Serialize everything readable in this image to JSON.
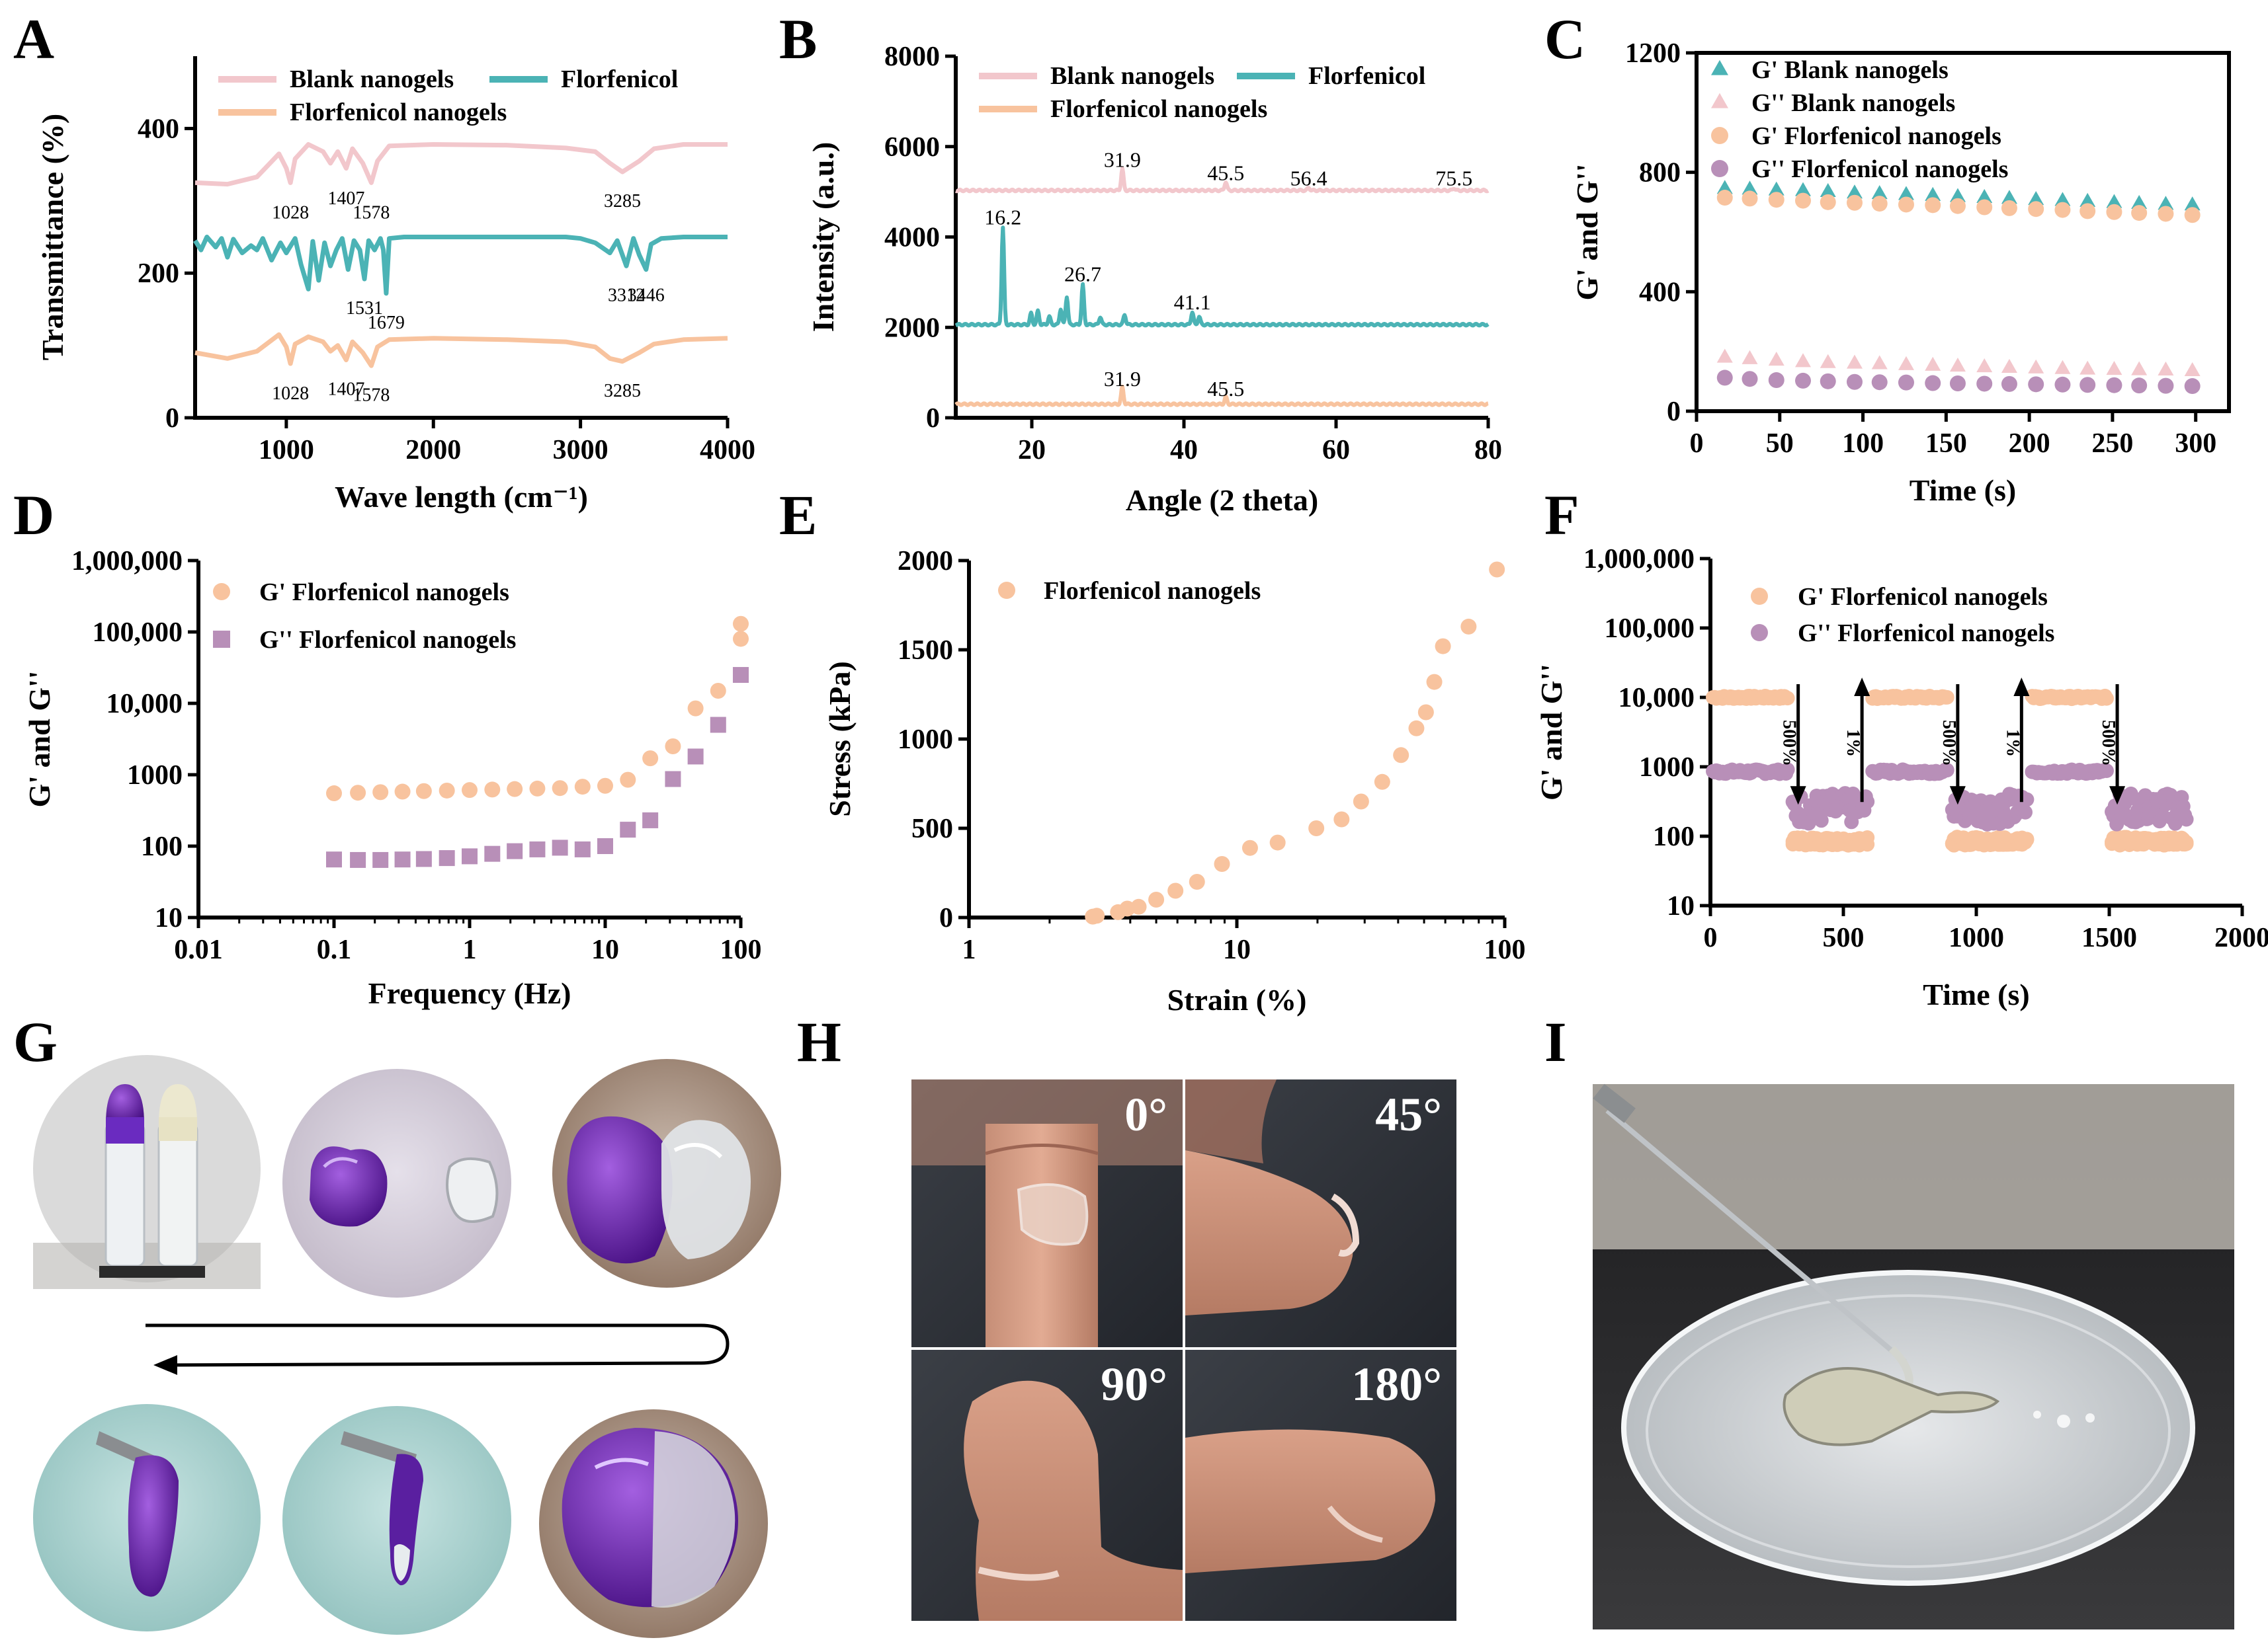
{
  "panel_letters": [
    "A",
    "B",
    "C",
    "D",
    "E",
    "F",
    "G",
    "H",
    "I"
  ],
  "colors": {
    "blank": "#F2C7CC",
    "flor": "#4BB3B5",
    "flornano": "#F8C39E",
    "gdouble": "#B88FB8",
    "gdouble_dark": "#A47AAA"
  },
  "chart_data": [
    {
      "id": "A",
      "type": "line",
      "xlabel": "Wave length (cm⁻¹)",
      "ylabel": "Transmittance (%)",
      "xlim": [
        380,
        4000
      ],
      "ylim": [
        0,
        500
      ],
      "xticks": [
        1000,
        2000,
        3000,
        4000
      ],
      "xtick_labels": [
        "1000",
        "2000",
        "3000",
        "4000"
      ],
      "yticks": [
        0,
        200,
        400
      ],
      "ytick_labels": [
        "0",
        "200",
        "400"
      ],
      "legend": [
        "Blank nanogels",
        "Florfenicol",
        "Florfenicol nanogels"
      ],
      "series": [
        {
          "name": "Blank nanogels",
          "color": "#F2C7CC",
          "x": [
            380,
            600,
            800,
            950,
            1000,
            1028,
            1060,
            1150,
            1250,
            1300,
            1350,
            1407,
            1450,
            1520,
            1578,
            1620,
            1700,
            2000,
            2500,
            2900,
            3100,
            3200,
            3285,
            3400,
            3500,
            3700,
            4000
          ],
          "y": [
            325,
            323,
            333,
            365,
            345,
            325,
            358,
            378,
            368,
            352,
            368,
            345,
            372,
            352,
            325,
            355,
            376,
            378,
            377,
            373,
            368,
            352,
            340,
            355,
            372,
            378,
            378
          ]
        },
        {
          "name": "Florfenicol",
          "color": "#4BB3B5",
          "x": [
            380,
            420,
            460,
            520,
            560,
            600,
            640,
            700,
            760,
            800,
            840,
            900,
            960,
            1000,
            1060,
            1100,
            1150,
            1180,
            1220,
            1260,
            1300,
            1340,
            1380,
            1420,
            1460,
            1500,
            1531,
            1560,
            1600,
            1640,
            1660,
            1679,
            1700,
            1800,
            2000,
            2500,
            2900,
            3000,
            3100,
            3200,
            3250,
            3312,
            3360,
            3400,
            3446,
            3480,
            3550,
            3700,
            4000
          ],
          "y": [
            245,
            232,
            250,
            236,
            248,
            222,
            247,
            228,
            238,
            232,
            248,
            218,
            242,
            228,
            248,
            212,
            178,
            244,
            190,
            242,
            210,
            232,
            248,
            205,
            245,
            232,
            192,
            245,
            232,
            248,
            232,
            172,
            248,
            250,
            250,
            250,
            250,
            248,
            242,
            228,
            245,
            210,
            248,
            225,
            205,
            240,
            248,
            250,
            250
          ]
        },
        {
          "name": "Florfenicol nanogels",
          "color": "#F8C39E",
          "x": [
            380,
            600,
            800,
            950,
            1000,
            1028,
            1060,
            1150,
            1250,
            1300,
            1350,
            1407,
            1450,
            1520,
            1578,
            1620,
            1700,
            2000,
            2500,
            2900,
            3100,
            3200,
            3285,
            3400,
            3500,
            3700,
            4000
          ],
          "y": [
            90,
            82,
            92,
            115,
            98,
            75,
            102,
            112,
            105,
            92,
            100,
            80,
            105,
            90,
            72,
            98,
            108,
            110,
            108,
            105,
            98,
            82,
            78,
            90,
            102,
            108,
            110
          ]
        }
      ],
      "annotations": [
        {
          "text": "1028",
          "x": 1028,
          "y": 312,
          "side": "below"
        },
        {
          "text": "1407",
          "x": 1407,
          "y": 332,
          "side": "below"
        },
        {
          "text": "1578",
          "x": 1578,
          "y": 312,
          "side": "below"
        },
        {
          "text": "3285",
          "x": 3285,
          "y": 328,
          "side": "below"
        },
        {
          "text": "1531",
          "x": 1531,
          "y": 180,
          "side": "below"
        },
        {
          "text": "1679",
          "x": 1679,
          "y": 160,
          "side": "below"
        },
        {
          "text": "3312",
          "x": 3312,
          "y": 198,
          "side": "below"
        },
        {
          "text": "3446",
          "x": 3446,
          "y": 198,
          "side": "below"
        },
        {
          "text": "1028",
          "x": 1028,
          "y": 62,
          "side": "below"
        },
        {
          "text": "1407",
          "x": 1407,
          "y": 68,
          "side": "below"
        },
        {
          "text": "1578",
          "x": 1578,
          "y": 60,
          "side": "below"
        },
        {
          "text": "3285",
          "x": 3285,
          "y": 66,
          "side": "below"
        }
      ]
    },
    {
      "id": "B",
      "type": "line",
      "xlabel": "Angle (2 theta)",
      "ylabel": "Intensity (a.u.)",
      "xlim": [
        10,
        80
      ],
      "ylim": [
        0,
        8000
      ],
      "xticks": [
        20,
        40,
        60,
        80
      ],
      "xtick_labels": [
        "20",
        "40",
        "60",
        "80"
      ],
      "yticks": [
        0,
        2000,
        4000,
        6000,
        8000
      ],
      "ytick_labels": [
        "0",
        "2000",
        "4000",
        "6000",
        "8000"
      ],
      "legend": [
        "Blank nanogels",
        "Florfenicol",
        "Florfenicol nanogels"
      ],
      "series": [
        {
          "name": "Blank nanogels",
          "color": "#F2C7CC",
          "baseline": 5030,
          "peaks": [
            [
              31.9,
              480
            ],
            [
              45.5,
              190
            ],
            [
              56.4,
              60
            ],
            [
              75.5,
              50
            ]
          ]
        },
        {
          "name": "Florfenicol",
          "color": "#4BB3B5",
          "baseline": 2060,
          "peaks": [
            [
              16.2,
              2150
            ],
            [
              19.9,
              250
            ],
            [
              20.8,
              300
            ],
            [
              22.3,
              180
            ],
            [
              23.8,
              350
            ],
            [
              24.6,
              620
            ],
            [
              26.7,
              880
            ],
            [
              29.0,
              170
            ],
            [
              32.2,
              220
            ],
            [
              41.1,
              280
            ],
            [
              42.0,
              180
            ]
          ]
        },
        {
          "name": "Florfenicol nanogels",
          "color": "#F8C39E",
          "baseline": 300,
          "peaks": [
            [
              31.9,
              380
            ],
            [
              45.5,
              160
            ]
          ]
        }
      ],
      "annotations": [
        {
          "text": "31.9",
          "x": 31.9,
          "y": 5550
        },
        {
          "text": "45.5",
          "x": 45.5,
          "y": 5260
        },
        {
          "text": "56.4",
          "x": 56.4,
          "y": 5140
        },
        {
          "text": "75.5",
          "x": 75.5,
          "y": 5140
        },
        {
          "text": "16.2",
          "x": 16.2,
          "y": 4280
        },
        {
          "text": "26.7",
          "x": 26.7,
          "y": 3020
        },
        {
          "text": "41.1",
          "x": 41.1,
          "y": 2400
        },
        {
          "text": "31.9",
          "x": 31.9,
          "y": 700
        },
        {
          "text": "45.5",
          "x": 45.5,
          "y": 480
        }
      ]
    },
    {
      "id": "C",
      "type": "scatter",
      "xlabel": "Time (s)",
      "ylabel": "G' and G''",
      "xlim": [
        0,
        320
      ],
      "ylim": [
        0,
        1200
      ],
      "xticks": [
        0,
        50,
        100,
        150,
        200,
        250,
        300
      ],
      "xtick_labels": [
        "0",
        "50",
        "100",
        "150",
        "200",
        "250",
        "300"
      ],
      "yticks": [
        0,
        400,
        800,
        1200
      ],
      "ytick_labels": [
        "0",
        "400",
        "800",
        "1200"
      ],
      "x": [
        17,
        32,
        48,
        64,
        79,
        95,
        110,
        126,
        142,
        157,
        173,
        188,
        204,
        220,
        235,
        251,
        266,
        282,
        298
      ],
      "series": [
        {
          "name": "G'   Blank nanogels",
          "marker": "triangle",
          "color": "#4BB3B5",
          "values": [
            745,
            743,
            740,
            738,
            735,
            730,
            728,
            725,
            722,
            718,
            715,
            712,
            708,
            705,
            702,
            698,
            695,
            692,
            690
          ]
        },
        {
          "name": "G''  Blank nanogels",
          "marker": "triangle",
          "color": "#F2C7CC",
          "values": [
            180,
            175,
            170,
            165,
            162,
            160,
            158,
            155,
            153,
            150,
            148,
            146,
            144,
            142,
            140,
            139,
            138,
            137,
            135
          ]
        },
        {
          "name": "G'   Florfenicol nanogels",
          "marker": "circle",
          "color": "#F8C39E",
          "values": [
            715,
            712,
            708,
            705,
            700,
            698,
            695,
            692,
            690,
            687,
            683,
            680,
            677,
            674,
            670,
            667,
            664,
            661,
            657
          ]
        },
        {
          "name": "G''  Florfenicol nanogels",
          "marker": "circle",
          "color": "#B88FB8",
          "values": [
            112,
            108,
            104,
            102,
            100,
            98,
            97,
            96,
            94,
            93,
            92,
            91,
            90,
            89,
            88,
            87,
            86,
            85,
            84
          ]
        }
      ]
    },
    {
      "id": "D",
      "type": "scatter",
      "xlabel": "Frequency (Hz)",
      "ylabel": "G' and G''",
      "xscale": "log",
      "yscale": "log",
      "xlim": [
        0.01,
        100
      ],
      "ylim": [
        10,
        1000000
      ],
      "xticks": [
        0.01,
        0.1,
        1,
        10,
        100
      ],
      "xtick_labels": [
        "0.01",
        "0.1",
        "1",
        "10",
        "100"
      ],
      "yticks": [
        10,
        100,
        1000,
        10000,
        100000,
        1000000
      ],
      "ytick_labels": [
        "10",
        "100",
        "1000",
        "10,000",
        "100,000",
        "1,000,000"
      ],
      "series": [
        {
          "name": "G'   Florfenicol nanogels",
          "marker": "circle",
          "color": "#F8C39E",
          "x": [
            0.1,
            0.15,
            0.22,
            0.32,
            0.46,
            0.68,
            1,
            1.47,
            2.15,
            3.16,
            4.64,
            6.81,
            10,
            14.7,
            21.5,
            31.6,
            46.4,
            68.1,
            100,
            100
          ],
          "y": [
            550,
            560,
            570,
            580,
            590,
            600,
            610,
            620,
            630,
            640,
            650,
            680,
            700,
            850,
            1700,
            2500,
            8500,
            15000,
            80000,
            130000
          ]
        },
        {
          "name": "G''  Florfenicol nanogels",
          "marker": "square",
          "color": "#B88FB8",
          "x": [
            0.1,
            0.15,
            0.22,
            0.32,
            0.46,
            0.68,
            1,
            1.47,
            2.15,
            3.16,
            4.64,
            6.81,
            10,
            14.7,
            21.5,
            31.6,
            46.4,
            68.1,
            100
          ],
          "y": [
            65,
            64,
            64,
            65,
            66,
            68,
            72,
            78,
            85,
            90,
            95,
            90,
            100,
            170,
            230,
            870,
            1800,
            5000,
            25000
          ]
        }
      ]
    },
    {
      "id": "E",
      "type": "scatter",
      "xlabel": "Strain (%)",
      "ylabel": "Stress (kPa)",
      "xscale": "log",
      "xlim": [
        1,
        100
      ],
      "ylim": [
        0,
        2000
      ],
      "xticks": [
        1,
        10,
        100
      ],
      "xtick_labels": [
        "1",
        "10",
        "100"
      ],
      "yticks": [
        0,
        500,
        1000,
        1500,
        2000
      ],
      "ytick_labels": [
        "0",
        "500",
        "1000",
        "1500",
        "2000"
      ],
      "series": [
        {
          "name": "Florfenicol nanogels",
          "marker": "circle",
          "color": "#F8C39E",
          "x": [
            2.9,
            3.0,
            3.6,
            3.9,
            4.3,
            5.0,
            5.9,
            7.1,
            8.8,
            11.2,
            14.2,
            19.8,
            24.6,
            29.1,
            34.9,
            41.0,
            46.8,
            50.8,
            54.6,
            58.8,
            73.3,
            93.5
          ],
          "y": [
            5,
            10,
            30,
            50,
            60,
            100,
            150,
            200,
            300,
            390,
            420,
            500,
            550,
            650,
            760,
            910,
            1060,
            1150,
            1320,
            1520,
            1630,
            1950
          ]
        }
      ]
    },
    {
      "id": "F",
      "type": "scatter",
      "xlabel": "Time (s)",
      "ylabel": "G' and G''",
      "yscale": "log",
      "xlim": [
        0,
        2000
      ],
      "ylim": [
        10,
        1000000
      ],
      "xticks": [
        0,
        500,
        1000,
        1500,
        2000
      ],
      "xtick_labels": [
        "0",
        "500",
        "1000",
        "1500",
        "2000"
      ],
      "yticks": [
        10,
        100,
        1000,
        10000,
        100000,
        1000000
      ],
      "ytick_labels": [
        "10",
        "100",
        "1000",
        "10,000",
        "100,000",
        "1,000,000"
      ],
      "segments": [
        {
          "x": [
            0,
            300
          ],
          "strain": "1%",
          "gp": 10000,
          "gpp": 850
        },
        {
          "x": [
            300,
            600
          ],
          "strain": "500%",
          "gp": 85,
          "gpp": 250
        },
        {
          "x": [
            600,
            900
          ],
          "strain": "1%",
          "gp": 10000,
          "gpp": 850
        },
        {
          "x": [
            900,
            1200
          ],
          "strain": "500%",
          "gp": 85,
          "gpp": 250
        },
        {
          "x": [
            1200,
            1500
          ],
          "strain": "1%",
          "gp": 10000,
          "gpp": 850
        },
        {
          "x": [
            1500,
            1800
          ],
          "strain": "500%",
          "gp": 85,
          "gpp": 250
        }
      ],
      "series_names": [
        "G'   Florfenicol nanogels",
        "G''  Florfenicol nanogels"
      ],
      "arrows": [
        {
          "x": 330,
          "dir": "down",
          "label": "500%"
        },
        {
          "x": 570,
          "dir": "up",
          "label": "1%"
        },
        {
          "x": 930,
          "dir": "down",
          "label": "500%"
        },
        {
          "x": 1170,
          "dir": "up",
          "label": "1%"
        },
        {
          "x": 1530,
          "dir": "down",
          "label": "500%"
        }
      ]
    }
  ],
  "photos": {
    "H": {
      "angles": [
        "0°",
        "45°",
        "90°",
        "180°"
      ]
    }
  }
}
